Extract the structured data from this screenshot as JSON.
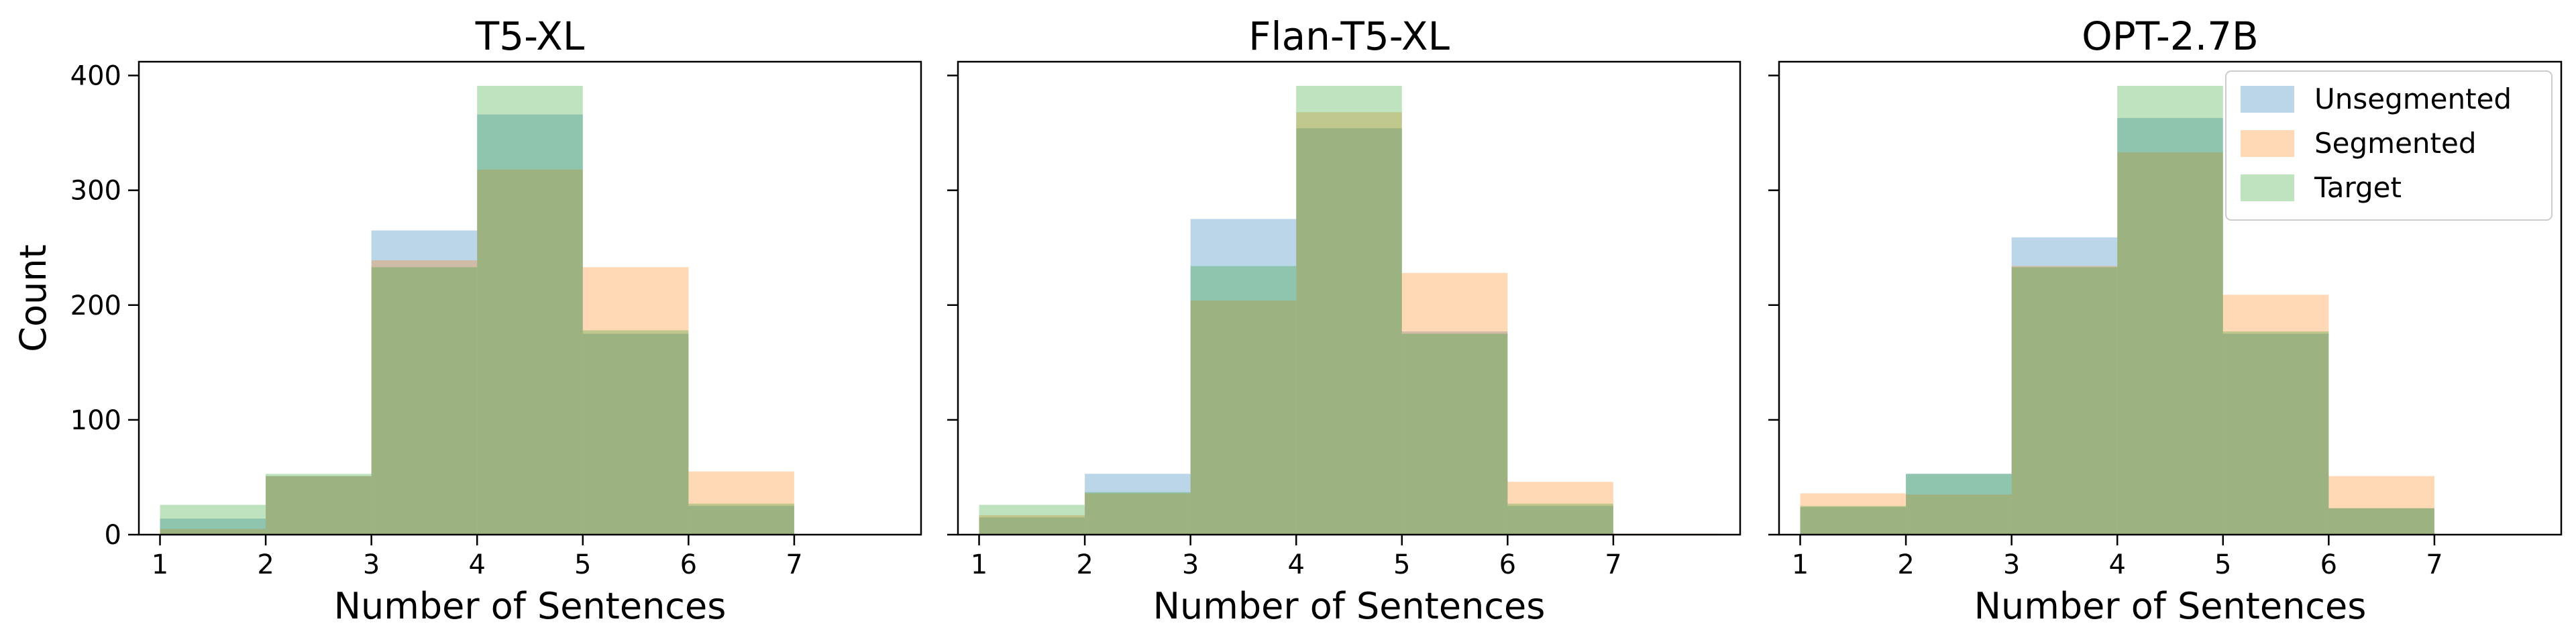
{
  "chart_data": [
    {
      "type": "bar",
      "title": "T5-XL",
      "xlabel": "Number of Sentences",
      "ylabel": "Count",
      "xlim": [
        0.8,
        8.2
      ],
      "ylim": [
        0,
        412
      ],
      "xticks": [
        "1",
        "2",
        "3",
        "4",
        "5",
        "6",
        "7"
      ],
      "yticks": [
        "0",
        "100",
        "200",
        "300",
        "400"
      ],
      "bin_edges": [
        1,
        2,
        3,
        4,
        5,
        6,
        7,
        8
      ],
      "series": [
        {
          "name": "Unsegmented",
          "color": "#1f77b4",
          "values": [
            14,
            51,
            265,
            366,
            175,
            25,
            0
          ]
        },
        {
          "name": "Segmented",
          "color": "#ff7f0e",
          "values": [
            5,
            51,
            239,
            318,
            233,
            55,
            0
          ]
        },
        {
          "name": "Target",
          "color": "#2ca02c",
          "values": [
            26,
            53,
            233,
            391,
            178,
            27,
            0
          ]
        }
      ],
      "legend": false
    },
    {
      "type": "bar",
      "title": "Flan-T5-XL",
      "xlabel": "Number of Sentences",
      "ylabel": "",
      "xlim": [
        0.8,
        8.2
      ],
      "ylim": [
        0,
        412
      ],
      "xticks": [
        "1",
        "2",
        "3",
        "4",
        "5",
        "6",
        "7"
      ],
      "yticks": [
        "",
        "",
        "",
        "",
        ""
      ],
      "bin_edges": [
        1,
        2,
        3,
        4,
        5,
        6,
        7,
        8
      ],
      "series": [
        {
          "name": "Unsegmented",
          "color": "#1f77b4",
          "values": [
            15,
            53,
            275,
            354,
            177,
            25,
            0
          ]
        },
        {
          "name": "Segmented",
          "color": "#ff7f0e",
          "values": [
            17,
            36,
            204,
            368,
            228,
            46,
            1
          ]
        },
        {
          "name": "Target",
          "color": "#2ca02c",
          "values": [
            26,
            37,
            234,
            391,
            175,
            27,
            0
          ]
        }
      ],
      "legend": false
    },
    {
      "type": "bar",
      "title": "OPT-2.7B",
      "xlabel": "Number of Sentences",
      "ylabel": "",
      "xlim": [
        0.8,
        8.2
      ],
      "ylim": [
        0,
        412
      ],
      "xticks": [
        "1",
        "2",
        "3",
        "4",
        "5",
        "6",
        "7"
      ],
      "yticks": [
        "",
        "",
        "",
        "",
        ""
      ],
      "bin_edges": [
        1,
        2,
        3,
        4,
        5,
        6,
        7,
        8
      ],
      "series": [
        {
          "name": "Unsegmented",
          "color": "#1f77b4",
          "values": [
            24,
            53,
            259,
            363,
            175,
            23,
            0
          ]
        },
        {
          "name": "Segmented",
          "color": "#ff7f0e",
          "values": [
            36,
            35,
            234,
            333,
            209,
            51,
            0
          ]
        },
        {
          "name": "Target",
          "color": "#2ca02c",
          "values": [
            25,
            53,
            233,
            391,
            177,
            23,
            0
          ]
        }
      ],
      "legend": true,
      "legend_position": "top-right"
    }
  ]
}
